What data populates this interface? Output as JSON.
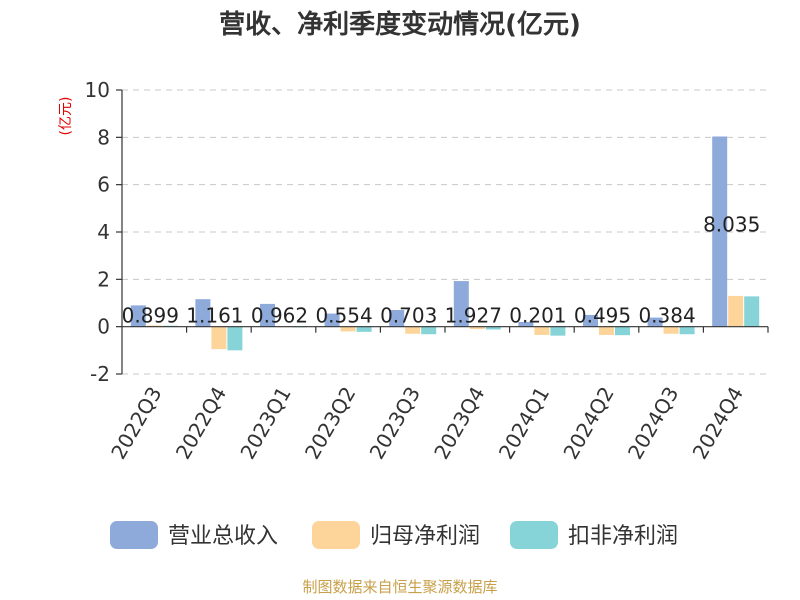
{
  "chart_data": {
    "type": "bar",
    "title": "营收、净利季度变动情况(亿元)",
    "unit_label": "(亿元)",
    "categories": [
      "2022Q3",
      "2022Q4",
      "2023Q1",
      "2023Q2",
      "2023Q3",
      "2023Q4",
      "2024Q1",
      "2024Q2",
      "2024Q3",
      "2024Q4"
    ],
    "series": [
      {
        "name": "营业总收入",
        "color": "#8eaadb",
        "values": [
          0.899,
          1.161,
          0.962,
          0.554,
          0.703,
          1.927,
          0.201,
          0.495,
          0.384,
          8.035
        ]
      },
      {
        "name": "归母净利润",
        "color": "#fdd49a",
        "values": [
          0.05,
          -0.95,
          -0.02,
          -0.2,
          -0.3,
          -0.1,
          -0.35,
          -0.35,
          -0.3,
          1.3
        ]
      },
      {
        "name": "扣非净利润",
        "color": "#86d4d8",
        "values": [
          0.04,
          -1.0,
          -0.03,
          -0.22,
          -0.32,
          -0.12,
          -0.38,
          -0.36,
          -0.32,
          1.28
        ]
      }
    ],
    "data_labels": [
      "0.899",
      "1.161",
      "0.962",
      "0.554",
      "0.703",
      "1.927",
      "0.201",
      "0.495",
      "0.384",
      "8.035"
    ],
    "y_ticks": [
      -2,
      0,
      2,
      4,
      6,
      8,
      10
    ],
    "ylim": [
      -2,
      10
    ],
    "grid": true,
    "legend_position": "bottom"
  },
  "source_text": "制图数据来自恒生聚源数据库"
}
